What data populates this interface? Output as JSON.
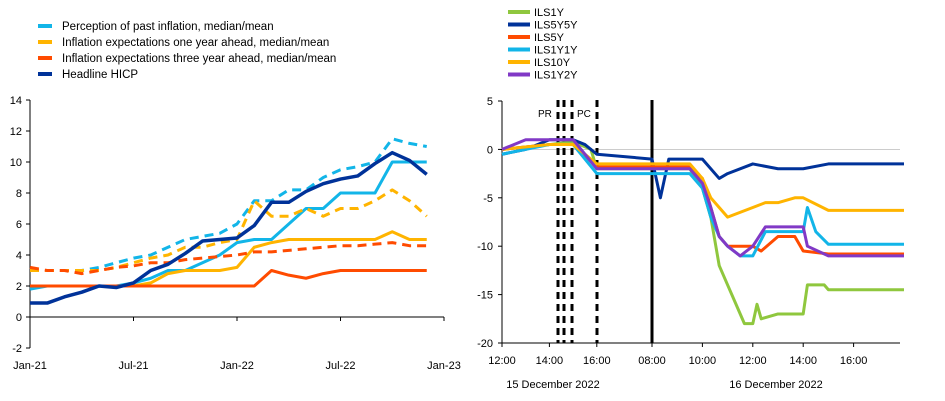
{
  "chart_data": [
    {
      "type": "line",
      "x_ticks": [
        "Jan-21",
        "Jul-21",
        "Jan-22",
        "Jul-22",
        "Jan-23"
      ],
      "ylim": [
        -2,
        14
      ],
      "y_ticks": [
        -2,
        0,
        2,
        4,
        6,
        8,
        10,
        12,
        14
      ],
      "grid": false,
      "legend_position": "top-left",
      "series": [
        {
          "name": "Perception of past inflation, median/mean",
          "color": "#12b5e8",
          "style": "solid+dashed",
          "x": [
            "Jan-21",
            "Feb-21",
            "Mar-21",
            "Apr-21",
            "May-21",
            "Jun-21",
            "Jul-21",
            "Aug-21",
            "Sep-21",
            "Oct-21",
            "Nov-21",
            "Dec-21",
            "Jan-22",
            "Feb-22",
            "Mar-22",
            "Apr-22",
            "May-22",
            "Jun-22",
            "Jul-22",
            "Aug-22",
            "Sep-22",
            "Oct-22",
            "Nov-22",
            "Dec-22"
          ],
          "median": [
            1.8,
            2.0,
            2.0,
            2.0,
            2.0,
            2.0,
            2.2,
            2.5,
            3.0,
            3.0,
            3.5,
            4.0,
            4.8,
            5.0,
            5.0,
            6.0,
            7.0,
            7.0,
            8.0,
            8.0,
            8.0,
            10.0,
            10.0,
            10.0
          ],
          "mean": [
            3.0,
            3.0,
            3.0,
            3.0,
            3.2,
            3.5,
            3.8,
            4.0,
            4.5,
            5.0,
            5.2,
            5.4,
            6.0,
            7.5,
            7.5,
            8.2,
            8.2,
            9.0,
            9.5,
            9.7,
            10.0,
            11.5,
            11.2,
            11.0
          ]
        },
        {
          "name": "Inflation expectations one year ahead, median/mean",
          "color": "#ffb400",
          "style": "solid+dashed",
          "x": [
            "Jan-21",
            "Feb-21",
            "Mar-21",
            "Apr-21",
            "May-21",
            "Jun-21",
            "Jul-21",
            "Aug-21",
            "Sep-21",
            "Oct-21",
            "Nov-21",
            "Dec-21",
            "Jan-22",
            "Feb-22",
            "Mar-22",
            "Apr-22",
            "May-22",
            "Jun-22",
            "Jul-22",
            "Aug-22",
            "Sep-22",
            "Oct-22",
            "Nov-22",
            "Dec-22"
          ],
          "median": [
            2.0,
            2.0,
            2.0,
            2.0,
            2.0,
            2.0,
            2.0,
            2.2,
            2.8,
            3.0,
            3.0,
            3.0,
            3.2,
            4.5,
            4.8,
            5.0,
            5.0,
            5.0,
            5.0,
            5.0,
            5.0,
            5.5,
            5.0,
            5.0
          ],
          "mean": [
            3.0,
            3.0,
            3.0,
            3.0,
            3.0,
            3.2,
            3.5,
            3.8,
            4.0,
            4.5,
            4.5,
            4.8,
            5.0,
            7.5,
            6.5,
            6.5,
            7.0,
            6.5,
            7.0,
            7.0,
            7.5,
            8.2,
            7.5,
            6.5
          ]
        },
        {
          "name": "Inflation expectations three year ahead, median/mean",
          "color": "#ff4b00",
          "style": "solid+dashed",
          "x": [
            "Jan-21",
            "Feb-21",
            "Mar-21",
            "Apr-21",
            "May-21",
            "Jun-21",
            "Jul-21",
            "Aug-21",
            "Sep-21",
            "Oct-21",
            "Nov-21",
            "Dec-21",
            "Jan-22",
            "Feb-22",
            "Mar-22",
            "Apr-22",
            "May-22",
            "Jun-22",
            "Jul-22",
            "Aug-22",
            "Sep-22",
            "Oct-22",
            "Nov-22",
            "Dec-22"
          ],
          "median": [
            2.0,
            2.0,
            2.0,
            2.0,
            2.0,
            2.0,
            2.0,
            2.0,
            2.0,
            2.0,
            2.0,
            2.0,
            2.0,
            2.0,
            3.0,
            2.7,
            2.5,
            2.8,
            3.0,
            3.0,
            3.0,
            3.0,
            3.0,
            3.0
          ],
          "mean": [
            3.2,
            3.0,
            3.0,
            2.8,
            3.0,
            3.2,
            3.3,
            3.5,
            3.5,
            3.7,
            3.8,
            3.9,
            4.0,
            4.2,
            4.2,
            4.3,
            4.4,
            4.5,
            4.6,
            4.6,
            4.7,
            4.8,
            4.6,
            4.6
          ]
        },
        {
          "name": "Headline HICP",
          "color": "#003299",
          "style": "solid",
          "x": [
            "Jan-21",
            "Feb-21",
            "Mar-21",
            "Apr-21",
            "May-21",
            "Jun-21",
            "Jul-21",
            "Aug-21",
            "Sep-21",
            "Oct-21",
            "Nov-21",
            "Dec-21",
            "Jan-22",
            "Feb-22",
            "Mar-22",
            "Apr-22",
            "May-22",
            "Jun-22",
            "Jul-22",
            "Aug-22",
            "Sep-22",
            "Oct-22",
            "Nov-22",
            "Dec-22"
          ],
          "values": [
            0.9,
            0.9,
            1.3,
            1.6,
            2.0,
            1.9,
            2.2,
            3.0,
            3.4,
            4.1,
            4.9,
            5.0,
            5.1,
            5.9,
            7.4,
            7.4,
            8.1,
            8.6,
            8.9,
            9.1,
            9.9,
            10.6,
            10.1,
            9.2
          ]
        }
      ]
    },
    {
      "type": "line",
      "x_ticks": [
        "12:00",
        "14:00",
        "16:00",
        "08:00",
        "10:00",
        "12:00",
        "14:00",
        "16:00"
      ],
      "day_labels": [
        "15 December 2022",
        "16 December 2022"
      ],
      "ylim": [
        -20,
        5
      ],
      "y_ticks": [
        5,
        0,
        -5,
        -10,
        -15,
        -20
      ],
      "grid": false,
      "legend_position": "top-left",
      "annotations": [
        "PR",
        "PC"
      ],
      "time_axis_note": "time in hours, day boundary at 18:00 (15 Dec) → 08:00 (16 Dec)",
      "series": [
        {
          "name": "ILS1Y",
          "color": "#8fc73e",
          "points": [
            [
              "12:00",
              0
            ],
            [
              "14:00",
              0.5
            ],
            [
              "15:00",
              0.8
            ],
            [
              "15:45",
              0
            ],
            [
              "16:00",
              -2
            ],
            [
              "08:00",
              -2
            ],
            [
              "09:30",
              -2
            ],
            [
              "10:00",
              -4
            ],
            [
              "10:20",
              -7
            ],
            [
              "10:40",
              -12
            ],
            [
              "11:00",
              -14
            ],
            [
              "11:20",
              -16
            ],
            [
              "11:40",
              -18
            ],
            [
              "12:00",
              -18
            ],
            [
              "12:10",
              -16
            ],
            [
              "12:20",
              -17.5
            ],
            [
              "13:00",
              -17
            ],
            [
              "14:00",
              -17
            ],
            [
              "14:10",
              -14
            ],
            [
              "14:50",
              -14
            ],
            [
              "15:00",
              -14.5
            ],
            [
              "18:00",
              -14.5
            ]
          ]
        },
        {
          "name": "ILS5Y5Y",
          "color": "#003299",
          "points": [
            [
              "12:00",
              -0.5
            ],
            [
              "13:00",
              0
            ],
            [
              "14:00",
              1
            ],
            [
              "15:00",
              1
            ],
            [
              "15:30",
              0.5
            ],
            [
              "16:00",
              -0.5
            ],
            [
              "08:00",
              -1
            ],
            [
              "08:20",
              -5
            ],
            [
              "08:40",
              -1
            ],
            [
              "10:00",
              -1
            ],
            [
              "10:40",
              -3
            ],
            [
              "11:00",
              -2.5
            ],
            [
              "12:00",
              -1.5
            ],
            [
              "13:00",
              -2
            ],
            [
              "14:00",
              -2
            ],
            [
              "15:00",
              -1.5
            ],
            [
              "18:00",
              -1.5
            ]
          ]
        },
        {
          "name": "ILS5Y",
          "color": "#ff4b00",
          "points": [
            [
              "12:00",
              0
            ],
            [
              "14:00",
              0.5
            ],
            [
              "15:00",
              0.5
            ],
            [
              "16:00",
              -1.8
            ],
            [
              "08:00",
              -1.8
            ],
            [
              "09:30",
              -1.8
            ],
            [
              "10:00",
              -3
            ],
            [
              "10:20",
              -6
            ],
            [
              "10:40",
              -9
            ],
            [
              "11:00",
              -10
            ],
            [
              "12:00",
              -10
            ],
            [
              "12:20",
              -10.5
            ],
            [
              "13:00",
              -9
            ],
            [
              "13:40",
              -9
            ],
            [
              "14:00",
              -10.5
            ],
            [
              "15:00",
              -10.8
            ],
            [
              "18:00",
              -10.8
            ]
          ]
        },
        {
          "name": "ILS1Y1Y",
          "color": "#12b5e8",
          "points": [
            [
              "12:00",
              -0.5
            ],
            [
              "14:00",
              0.5
            ],
            [
              "15:00",
              0.5
            ],
            [
              "16:00",
              -2.5
            ],
            [
              "08:00",
              -2.5
            ],
            [
              "09:30",
              -2.5
            ],
            [
              "10:00",
              -4
            ],
            [
              "10:20",
              -7
            ],
            [
              "10:40",
              -9
            ],
            [
              "11:00",
              -10
            ],
            [
              "11:30",
              -11
            ],
            [
              "12:00",
              -11
            ],
            [
              "12:30",
              -8.5
            ],
            [
              "13:00",
              -8.5
            ],
            [
              "14:00",
              -8.5
            ],
            [
              "14:10",
              -6
            ],
            [
              "14:30",
              -8.5
            ],
            [
              "15:00",
              -9.8
            ],
            [
              "18:00",
              -9.8
            ]
          ]
        },
        {
          "name": "ILS10Y",
          "color": "#ffb400",
          "points": [
            [
              "12:00",
              0
            ],
            [
              "14:00",
              0.5
            ],
            [
              "15:00",
              0.5
            ],
            [
              "16:00",
              -1.5
            ],
            [
              "08:00",
              -1.5
            ],
            [
              "09:30",
              -1.5
            ],
            [
              "10:00",
              -3
            ],
            [
              "10:20",
              -5
            ],
            [
              "10:40",
              -6
            ],
            [
              "11:00",
              -7
            ],
            [
              "12:00",
              -6
            ],
            [
              "12:30",
              -5.5
            ],
            [
              "13:00",
              -5.5
            ],
            [
              "13:40",
              -5
            ],
            [
              "14:00",
              -5
            ],
            [
              "15:00",
              -6.3
            ],
            [
              "18:00",
              -6.3
            ]
          ]
        },
        {
          "name": "ILS1Y2Y",
          "color": "#8139c6",
          "points": [
            [
              "12:00",
              0
            ],
            [
              "13:00",
              1
            ],
            [
              "15:00",
              1
            ],
            [
              "16:00",
              -2
            ],
            [
              "08:00",
              -2
            ],
            [
              "09:30",
              -2
            ],
            [
              "10:00",
              -3.5
            ],
            [
              "10:20",
              -6
            ],
            [
              "10:40",
              -9
            ],
            [
              "11:00",
              -10
            ],
            [
              "11:30",
              -11
            ],
            [
              "12:00",
              -10
            ],
            [
              "12:30",
              -8
            ],
            [
              "13:00",
              -8
            ],
            [
              "14:00",
              -8
            ],
            [
              "14:10",
              -10
            ],
            [
              "15:00",
              -11
            ],
            [
              "18:00",
              -11
            ]
          ]
        }
      ]
    }
  ]
}
